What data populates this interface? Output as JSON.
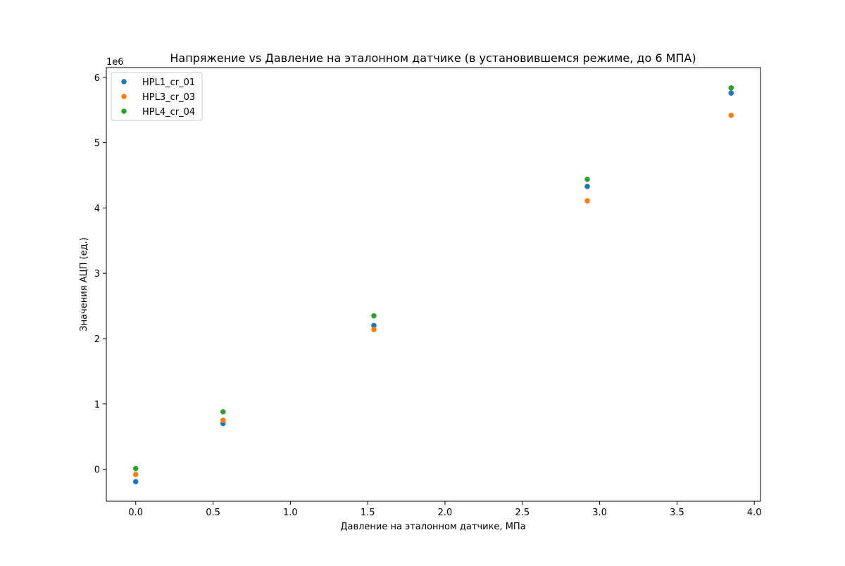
{
  "chart_data": {
    "type": "scatter",
    "title": "Напряжение vs Давление на эталонном датчике (в установившемся режиме, до 6 МПА)",
    "xlabel": "Давление на эталонном датчике, МПа",
    "ylabel": "Значения АЦП (ед.)",
    "y_offset_label": "1e6",
    "xlim": [
      -0.19,
      4.04
    ],
    "ylim": [
      -0.49,
      6.15
    ],
    "y_scale_note": "values in units of 1e6",
    "x_ticks": [
      0.0,
      0.5,
      1.0,
      1.5,
      2.0,
      2.5,
      3.0,
      3.5,
      4.0
    ],
    "x_tick_labels": [
      "0.0",
      "0.5",
      "1.0",
      "1.5",
      "2.0",
      "2.5",
      "3.0",
      "3.5",
      "4.0"
    ],
    "y_ticks": [
      0,
      1,
      2,
      3,
      4,
      5,
      6
    ],
    "y_tick_labels": [
      "0",
      "1",
      "2",
      "3",
      "4",
      "5",
      "6"
    ],
    "grid": false,
    "legend_position": "top-left",
    "series": [
      {
        "name": "HPL1_cr_01",
        "color": "#1f77b4",
        "x": [
          0.0,
          0.565,
          1.54,
          2.92,
          3.85
        ],
        "y": [
          -0.19,
          0.7,
          2.2,
          4.33,
          5.76
        ]
      },
      {
        "name": "HPL3_cr_03",
        "color": "#ff7f0e",
        "x": [
          0.0,
          0.565,
          1.54,
          2.92,
          3.85
        ],
        "y": [
          -0.08,
          0.75,
          2.14,
          4.11,
          5.42
        ]
      },
      {
        "name": "HPL4_cr_04",
        "color": "#2ca02c",
        "x": [
          0.0,
          0.565,
          1.54,
          2.92,
          3.85
        ],
        "y": [
          0.01,
          0.88,
          2.35,
          4.44,
          5.84
        ]
      }
    ]
  }
}
